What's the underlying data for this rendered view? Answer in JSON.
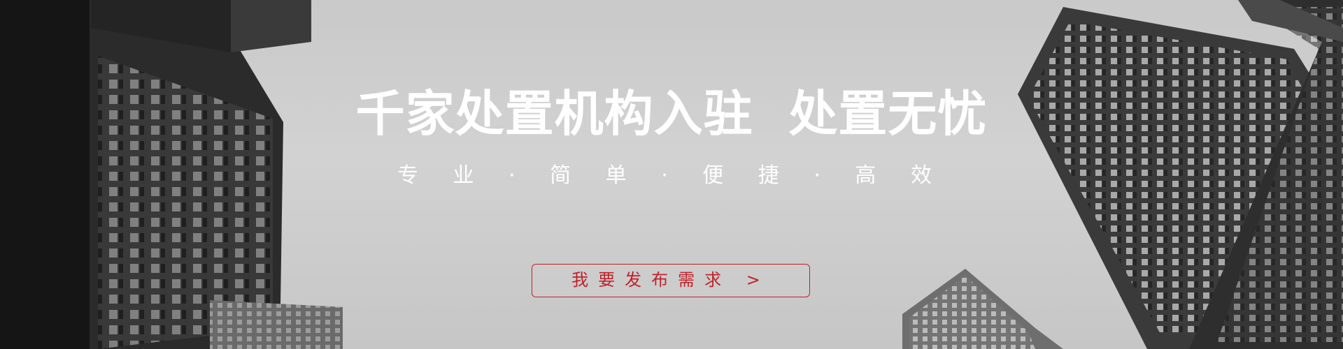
{
  "banner": {
    "headline": "千家处置机构入驻  处置无忧",
    "subline": "专 业 · 简 单 · 便 捷 · 高 效",
    "cta_label": "我要发布需求 >"
  },
  "colors": {
    "background": "#cccccc",
    "headline_text": "#ffffff",
    "cta_accent": "#c0212a"
  },
  "background_image": "grayscale skyscrapers photo"
}
